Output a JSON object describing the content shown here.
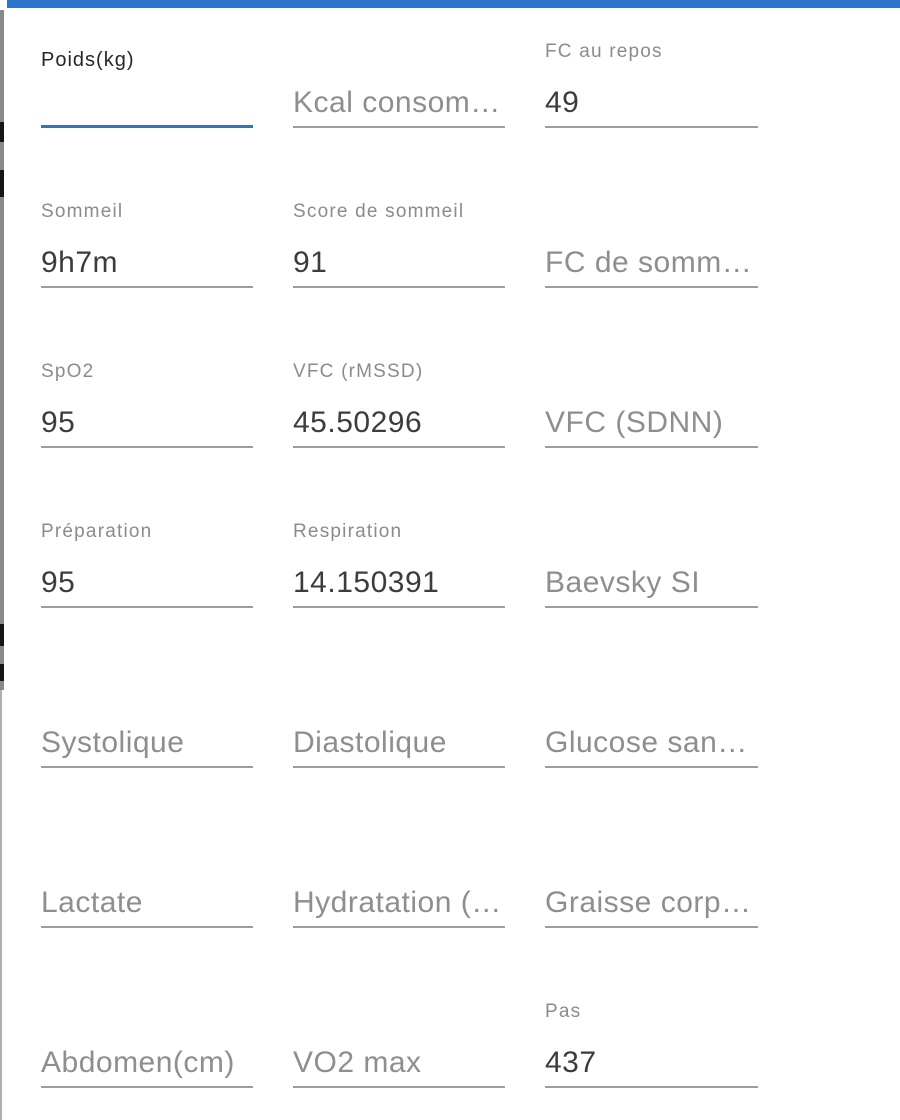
{
  "meta": {
    "accent_color": "#2E74C8",
    "underline_color": "#9C9C9C",
    "label_color": "#8B8B8B",
    "value_color": "#3C3C3C",
    "placeholder_color": "#8E8E8E"
  },
  "form": {
    "rows": [
      {
        "cells": [
          {
            "state": "focused",
            "label": "Poids(kg)",
            "value": ""
          },
          {
            "state": "empty",
            "placeholder": "Kcal consom…"
          },
          {
            "state": "filled",
            "label": "FC au repos",
            "value": "49"
          }
        ]
      },
      {
        "cells": [
          {
            "state": "filled",
            "label": "Sommeil",
            "value": "9h7m"
          },
          {
            "state": "filled",
            "label": "Score de sommeil",
            "value": "91"
          },
          {
            "state": "empty",
            "placeholder": "FC de somm…"
          }
        ]
      },
      {
        "cells": [
          {
            "state": "filled",
            "label": "SpO2",
            "value": "95"
          },
          {
            "state": "filled",
            "label": "VFC (rMSSD)",
            "value": "45.50296"
          },
          {
            "state": "empty",
            "placeholder": "VFC (SDNN)"
          }
        ]
      },
      {
        "cells": [
          {
            "state": "filled",
            "label": "Préparation",
            "value": "95"
          },
          {
            "state": "filled",
            "label": "Respiration",
            "value": "14.150391"
          },
          {
            "state": "empty",
            "placeholder": "Baevsky SI"
          }
        ]
      },
      {
        "cells": [
          {
            "state": "empty",
            "placeholder": "Systolique"
          },
          {
            "state": "empty",
            "placeholder": "Diastolique"
          },
          {
            "state": "empty",
            "placeholder": "Glucose san…"
          }
        ]
      },
      {
        "cells": [
          {
            "state": "empty",
            "placeholder": "Lactate"
          },
          {
            "state": "empty",
            "placeholder": "Hydratation (…"
          },
          {
            "state": "empty",
            "placeholder": "Graisse corp…"
          }
        ]
      },
      {
        "cells": [
          {
            "state": "empty",
            "placeholder": "Abdomen(cm)"
          },
          {
            "state": "empty",
            "placeholder": "VO2 max"
          },
          {
            "state": "filled",
            "label": "Pas",
            "value": "437"
          }
        ]
      }
    ]
  }
}
